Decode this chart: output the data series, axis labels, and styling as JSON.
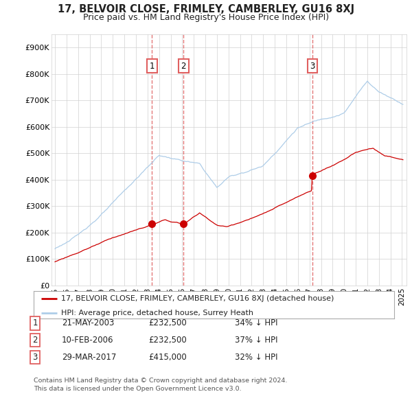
{
  "title": "17, BELVOIR CLOSE, FRIMLEY, CAMBERLEY, GU16 8XJ",
  "subtitle": "Price paid vs. HM Land Registry's House Price Index (HPI)",
  "legend_line1": "17, BELVOIR CLOSE, FRIMLEY, CAMBERLEY, GU16 8XJ (detached house)",
  "legend_line2": "HPI: Average price, detached house, Surrey Heath",
  "transactions": [
    {
      "num": 1,
      "date": "21-MAY-2003",
      "price": "£232,500",
      "hpi": "34% ↓ HPI",
      "year": 2003.38,
      "value": 232500
    },
    {
      "num": 2,
      "date": "10-FEB-2006",
      "price": "£232,500",
      "hpi": "37% ↓ HPI",
      "year": 2006.11,
      "value": 232500
    },
    {
      "num": 3,
      "date": "29-MAR-2017",
      "price": "£415,000",
      "hpi": "32% ↓ HPI",
      "year": 2017.24,
      "value": 415000
    }
  ],
  "vline_years": [
    2003.38,
    2006.11,
    2017.24
  ],
  "footnote1": "Contains HM Land Registry data © Crown copyright and database right 2024.",
  "footnote2": "This data is licensed under the Open Government Licence v3.0.",
  "hpi_color": "#aecde8",
  "price_color": "#cc0000",
  "vline_color": "#e06060",
  "background_color": "#ffffff",
  "grid_color": "#d0d0d0",
  "ylim": [
    0,
    950000
  ],
  "yticks": [
    0,
    100000,
    200000,
    300000,
    400000,
    500000,
    600000,
    700000,
    800000,
    900000
  ],
  "ylabels": [
    "£0",
    "£100K",
    "£200K",
    "£300K",
    "£400K",
    "£500K",
    "£600K",
    "£700K",
    "£800K",
    "£900K"
  ],
  "xlim_start": 1994.7,
  "xlim_end": 2025.4
}
